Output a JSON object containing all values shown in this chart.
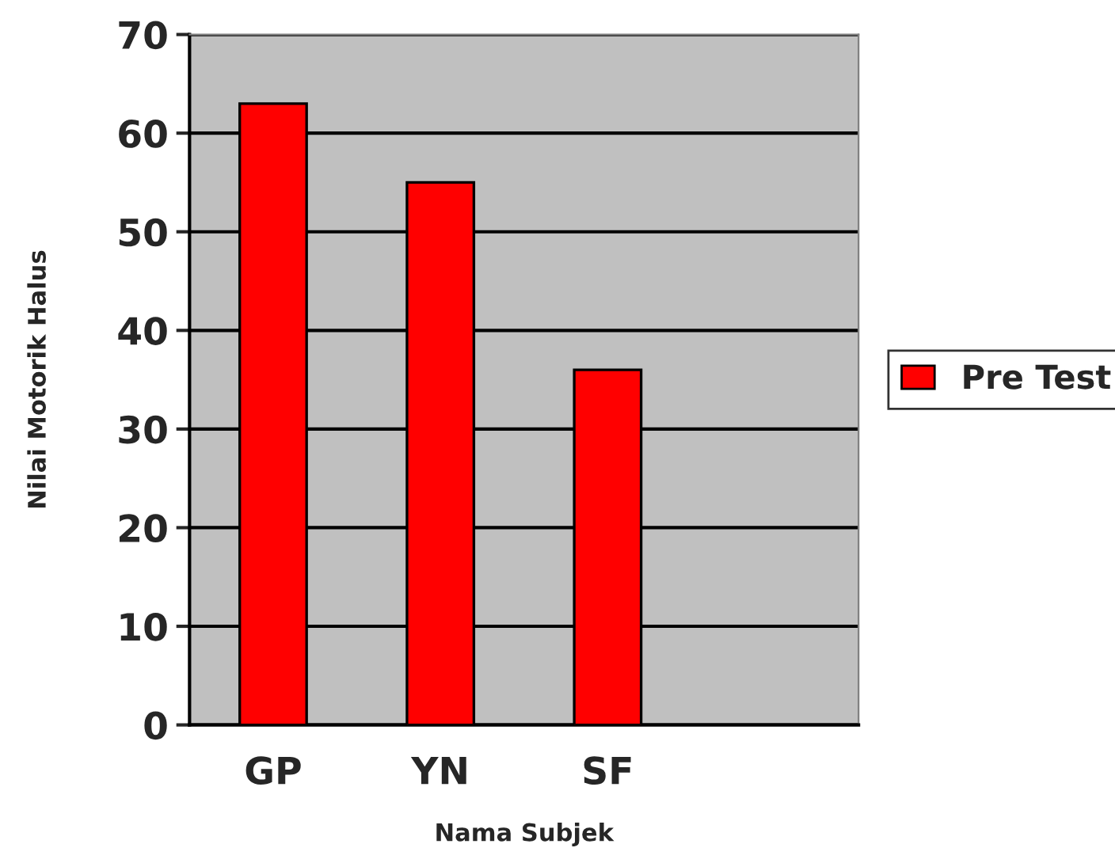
{
  "chart_data": {
    "type": "bar",
    "xlabel": "Nama Subjek",
    "ylabel": "Nilai Motorik Halus",
    "categories": [
      "GP",
      "YN",
      "SF",
      null
    ],
    "series": [
      {
        "name": "Pre Test",
        "color": "#ff0000",
        "values": [
          63,
          55,
          36,
          null
        ]
      }
    ],
    "ylim": [
      0,
      70
    ],
    "yticks": [
      0,
      10,
      20,
      30,
      40,
      50,
      60,
      70
    ],
    "grid": "y",
    "legend": "right"
  }
}
